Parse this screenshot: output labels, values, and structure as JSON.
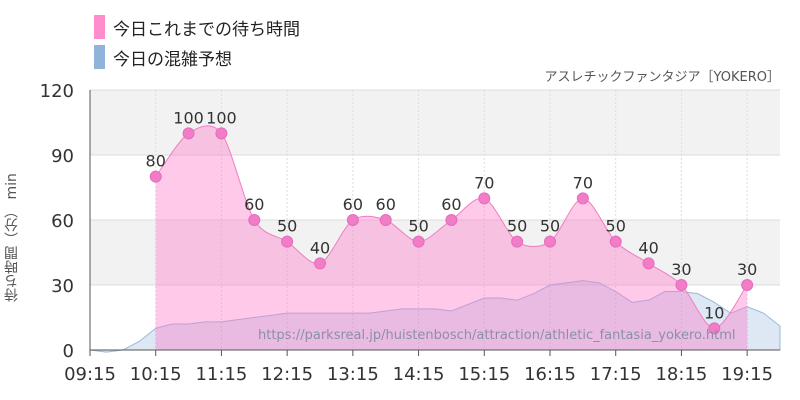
{
  "legend": [
    {
      "label": "今日これまでの待ち時間",
      "color": "#ff8ccc"
    },
    {
      "label": "今日の混雑予想",
      "color": "#8fb3d9"
    }
  ],
  "subtitle": "アスレチックファンタジア［YOKERO］",
  "watermark": "https://parksreal.jp/huistenbosch/attraction/athletic_fantasia_yokero.html",
  "chart_data": {
    "type": "area",
    "ylabel": "待ち時間（分） min",
    "ylim": [
      0,
      120
    ],
    "yticks": [
      0,
      30,
      60,
      90,
      120
    ],
    "xticks": [
      "09:15",
      "10:15",
      "11:15",
      "12:15",
      "13:15",
      "14:15",
      "15:15",
      "16:15",
      "17:15",
      "18:15",
      "19:15"
    ],
    "series": [
      {
        "name": "今日これまでの待ち時間",
        "color": "#ff8ccc",
        "x": [
          "10:15",
          "10:45",
          "11:15",
          "11:45",
          "12:15",
          "12:45",
          "13:15",
          "13:45",
          "14:15",
          "14:45",
          "15:15",
          "15:45",
          "16:15",
          "16:45",
          "17:15",
          "17:45",
          "18:15",
          "18:45",
          "19:15"
        ],
        "values": [
          80,
          100,
          100,
          60,
          50,
          40,
          60,
          60,
          50,
          60,
          70,
          50,
          50,
          70,
          50,
          40,
          30,
          10,
          30
        ],
        "labels": [
          "80",
          "100",
          "100",
          "60",
          "50",
          "40",
          "60",
          "60",
          "50",
          "60",
          "70",
          "50",
          "50",
          "70",
          "50",
          "40",
          "30",
          "10",
          "30"
        ]
      },
      {
        "name": "今日の混雑予想",
        "color": "#8fb3d9",
        "x": [
          "09:15",
          "09:30",
          "09:45",
          "10:00",
          "10:15",
          "10:30",
          "10:45",
          "11:00",
          "11:15",
          "11:30",
          "11:45",
          "12:00",
          "12:15",
          "12:30",
          "12:45",
          "13:00",
          "13:15",
          "13:30",
          "13:45",
          "14:00",
          "14:15",
          "14:30",
          "14:45",
          "15:00",
          "15:15",
          "15:30",
          "15:45",
          "16:00",
          "16:15",
          "16:30",
          "16:45",
          "17:00",
          "17:15",
          "17:30",
          "17:45",
          "18:00",
          "18:15",
          "18:30",
          "18:45",
          "19:00",
          "19:15",
          "19:30",
          "19:45"
        ],
        "values": [
          0,
          -1,
          0,
          4,
          10,
          12,
          12,
          13,
          13,
          14,
          15,
          16,
          17,
          17,
          17,
          17,
          17,
          17,
          18,
          19,
          19,
          19,
          18,
          21,
          24,
          24,
          23,
          26,
          30,
          31,
          32,
          31,
          27,
          22,
          23,
          27,
          27,
          26,
          22,
          17,
          20,
          17,
          11
        ]
      }
    ]
  }
}
